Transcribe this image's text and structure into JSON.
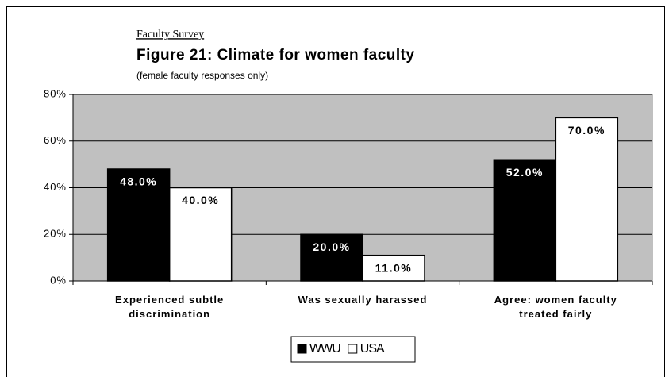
{
  "chart_data": {
    "type": "bar",
    "header": "Faculty Survey",
    "title": "Figure 21: Climate for women faculty",
    "subtitle": "(female faculty responses only)",
    "categories": [
      "Experienced subtle\ndiscrimination",
      "Was sexually harassed",
      "Agree: women faculty\ntreated fairly"
    ],
    "series": [
      {
        "name": "WWU",
        "color": "#000000",
        "values": [
          48,
          20,
          52
        ],
        "value_labels": [
          "48.0%",
          "20.0%",
          "52.0%"
        ]
      },
      {
        "name": "USA",
        "color": "#ffffff",
        "values": [
          40,
          11,
          70
        ],
        "value_labels": [
          "40.0%",
          "11.0%",
          "70.0%"
        ]
      }
    ],
    "ylim": [
      0,
      80
    ],
    "yticks": [
      {
        "value": 0,
        "label": "0%"
      },
      {
        "value": 20,
        "label": "20%"
      },
      {
        "value": 40,
        "label": "40%"
      },
      {
        "value": 60,
        "label": "60%"
      },
      {
        "value": 80,
        "label": "80%"
      }
    ],
    "plot_background": "#c0c0c0",
    "legend": "bottom"
  }
}
